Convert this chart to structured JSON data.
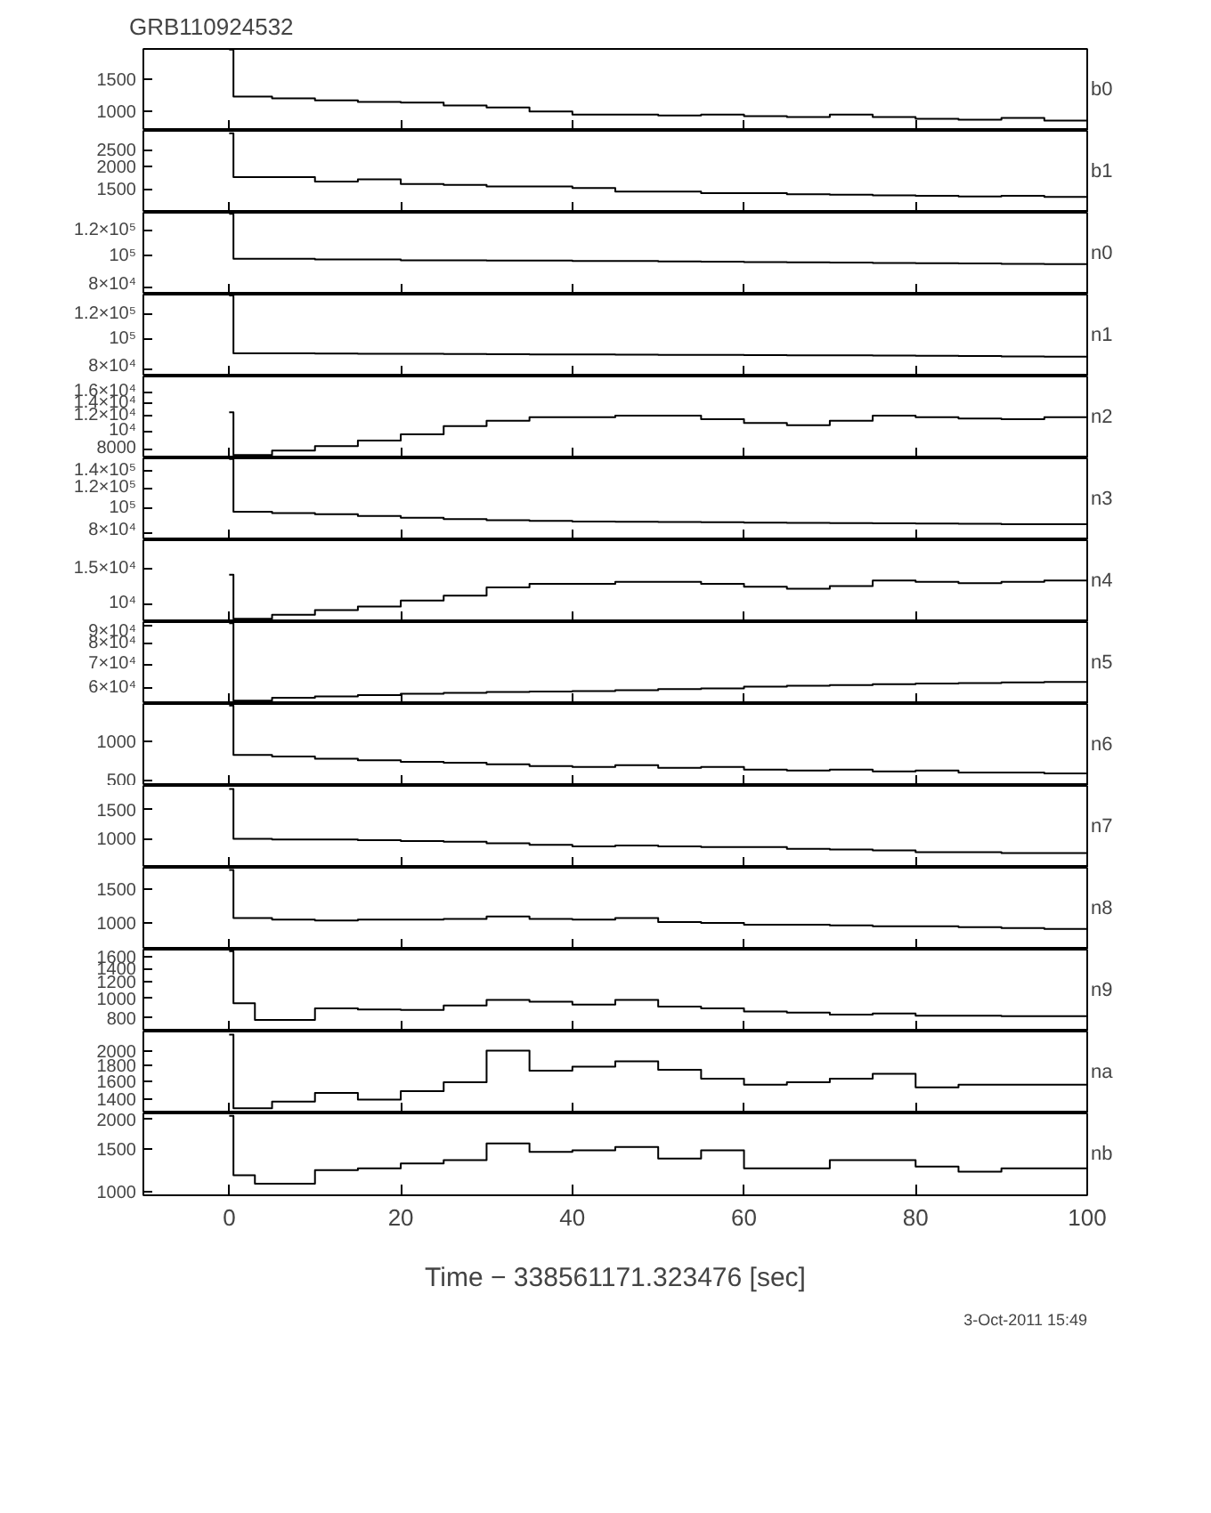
{
  "chart_data": [
    {
      "type": "step",
      "title": "GRB110924532",
      "x": [
        0,
        0.5,
        5,
        10,
        15,
        20,
        25,
        30,
        35,
        40,
        45,
        50,
        55,
        60,
        65,
        70,
        75,
        80,
        85,
        90,
        95,
        100
      ],
      "series": [
        {
          "name": "b0",
          "color": "#000000",
          "values": [
            2200,
            1210,
            1180,
            1150,
            1130,
            1120,
            1080,
            1050,
            1000,
            960,
            960,
            950,
            960,
            940,
            930,
            960,
            930,
            910,
            900,
            920,
            890,
            880
          ]
        }
      ],
      "xlim": [
        -10,
        100
      ],
      "xticks": [
        0,
        20,
        40,
        60,
        80,
        100
      ],
      "ylim": [
        780,
        2220
      ],
      "yticks": [
        1000,
        1500
      ],
      "log": true,
      "tick_labels": "y"
    },
    {
      "type": "step",
      "x": [
        0,
        0.5,
        5,
        10,
        15,
        20,
        25,
        30,
        35,
        40,
        45,
        50,
        55,
        60,
        65,
        70,
        75,
        80,
        85,
        90,
        95,
        100
      ],
      "series": [
        {
          "name": "b1",
          "color": "#000000",
          "values": [
            3100,
            1750,
            1750,
            1650,
            1700,
            1600,
            1580,
            1550,
            1550,
            1520,
            1450,
            1450,
            1420,
            1420,
            1400,
            1390,
            1380,
            1370,
            1360,
            1370,
            1350,
            1350
          ]
        }
      ],
      "xlim": [
        -10,
        100
      ],
      "xticks": [
        0,
        20,
        40,
        60,
        80,
        100
      ],
      "ylim": [
        1100,
        3200
      ],
      "yticks": [
        1500,
        2000,
        2500
      ],
      "log": true,
      "tick_labels": "y"
    },
    {
      "type": "step",
      "x": [
        0,
        0.5,
        5,
        10,
        15,
        20,
        25,
        30,
        35,
        40,
        45,
        50,
        55,
        60,
        65,
        70,
        75,
        80,
        85,
        90,
        95,
        100
      ],
      "series": [
        {
          "name": "n0",
          "color": "#000000",
          "values": [
            135000,
            98000,
            98000,
            97500,
            97500,
            97000,
            97000,
            96800,
            96800,
            96500,
            96500,
            96200,
            96000,
            95800,
            95600,
            95400,
            95200,
            95000,
            94800,
            94600,
            94400,
            94000
          ]
        }
      ],
      "xlim": [
        -10,
        100
      ],
      "xticks": [
        0,
        20,
        40,
        60,
        80,
        100
      ],
      "ylim": [
        76000,
        136000
      ],
      "yticks": [
        {
          "value": 80000,
          "label": "8×10⁴"
        },
        {
          "value": 100000,
          "label": "10⁵"
        },
        {
          "value": 120000,
          "label": "1.2×10⁵"
        }
      ],
      "log": true,
      "tick_labels": "y"
    },
    {
      "type": "step",
      "x": [
        0,
        0.5,
        5,
        10,
        15,
        20,
        25,
        30,
        35,
        40,
        45,
        50,
        55,
        60,
        65,
        70,
        75,
        80,
        85,
        90,
        95,
        100
      ],
      "series": [
        {
          "name": "n1",
          "color": "#000000",
          "values": [
            137000,
            90000,
            90000,
            89800,
            89700,
            89600,
            89500,
            89400,
            89300,
            89200,
            89100,
            89000,
            88900,
            88800,
            88700,
            88600,
            88500,
            88400,
            88200,
            88000,
            87800,
            87500
          ]
        }
      ],
      "xlim": [
        -10,
        100
      ],
      "xticks": [
        0,
        20,
        40,
        60,
        80,
        100
      ],
      "ylim": [
        76000,
        138000
      ],
      "yticks": [
        {
          "value": 80000,
          "label": "8×10⁴"
        },
        {
          "value": 100000,
          "label": "10⁵"
        },
        {
          "value": 120000,
          "label": "1.2×10⁵"
        }
      ],
      "log": true,
      "tick_labels": "y"
    },
    {
      "type": "step",
      "x": [
        0,
        0.5,
        5,
        10,
        15,
        20,
        25,
        30,
        35,
        40,
        45,
        50,
        55,
        60,
        65,
        70,
        75,
        80,
        85,
        90,
        95,
        100
      ],
      "series": [
        {
          "name": "n2",
          "color": "#000000",
          "values": [
            12500,
            7500,
            7900,
            8330,
            8900,
            9600,
            10600,
            11300,
            11800,
            11800,
            12000,
            12000,
            11500,
            11000,
            10700,
            11300,
            12000,
            11800,
            11600,
            11500,
            11800,
            12000
          ]
        }
      ],
      "xlim": [
        -10,
        100
      ],
      "xticks": [
        0,
        20,
        40,
        60,
        80,
        100
      ],
      "ylim": [
        7200,
        19200
      ],
      "yticks": [
        8000,
        {
          "value": 10000,
          "label": "10⁴"
        },
        {
          "value": 12000,
          "label": "1.2×10⁴"
        },
        {
          "value": 14000,
          "label": "1.4×10⁴"
        },
        {
          "value": 16000,
          "label": "1.6×10⁴"
        }
      ],
      "log": true,
      "tick_labels": "y"
    },
    {
      "type": "step",
      "x": [
        0,
        0.5,
        5,
        10,
        15,
        20,
        25,
        30,
        35,
        40,
        45,
        50,
        55,
        60,
        65,
        70,
        75,
        80,
        85,
        90,
        95,
        100
      ],
      "series": [
        {
          "name": "n3",
          "color": "#000000",
          "values": [
            155000,
            97000,
            96000,
            95000,
            93500,
            92000,
            91000,
            90000,
            89500,
            89000,
            88800,
            88600,
            88400,
            88200,
            88000,
            87800,
            87600,
            87400,
            87200,
            87000,
            87000,
            87000
          ]
        }
      ],
      "xlim": [
        -10,
        100
      ],
      "xticks": [
        0,
        20,
        40,
        60,
        80,
        100
      ],
      "ylim": [
        75400,
        156000
      ],
      "yticks": [
        {
          "value": 80000,
          "label": "8×10⁴"
        },
        {
          "value": 100000,
          "label": "10⁵"
        },
        {
          "value": 120000,
          "label": "1.2×10⁵"
        },
        {
          "value": 140000,
          "label": "1.4×10⁵"
        }
      ],
      "log": true,
      "tick_labels": "y"
    },
    {
      "type": "step",
      "x": [
        0,
        0.5,
        5,
        10,
        15,
        20,
        25,
        30,
        35,
        40,
        45,
        50,
        55,
        60,
        65,
        70,
        75,
        80,
        85,
        90,
        95,
        100
      ],
      "series": [
        {
          "name": "n4",
          "color": "#000000",
          "values": [
            14000,
            8400,
            8800,
            9300,
            9700,
            10400,
            11000,
            12100,
            12600,
            12600,
            12900,
            12900,
            12600,
            12200,
            11900,
            12300,
            13100,
            12900,
            12700,
            12900,
            13100,
            13400
          ]
        }
      ],
      "xlim": [
        -10,
        100
      ],
      "xticks": [
        0,
        20,
        40,
        60,
        80,
        100
      ],
      "ylim": [
        8090,
        20900
      ],
      "yticks": [
        {
          "value": 10000,
          "label": "10⁴"
        },
        {
          "value": 15000,
          "label": "1.5×10⁴"
        }
      ],
      "log": true,
      "tick_labels": "y"
    },
    {
      "type": "step",
      "x": [
        0,
        0.5,
        5,
        10,
        15,
        20,
        25,
        30,
        35,
        40,
        45,
        50,
        55,
        60,
        65,
        70,
        75,
        80,
        85,
        90,
        95,
        100
      ],
      "series": [
        {
          "name": "n5",
          "color": "#000000",
          "values": [
            91000,
            55500,
            56500,
            57000,
            57500,
            58000,
            58300,
            58600,
            58800,
            59000,
            59300,
            59700,
            60000,
            60700,
            61000,
            61300,
            61600,
            61900,
            62100,
            62300,
            62500,
            62700
          ]
        }
      ],
      "xlim": [
        -10,
        100
      ],
      "xticks": [
        0,
        20,
        40,
        60,
        80,
        100
      ],
      "ylim": [
        54300,
        91600
      ],
      "yticks": [
        {
          "value": 60000,
          "label": "6×10⁴"
        },
        {
          "value": 70000,
          "label": "7×10⁴"
        },
        {
          "value": 80000,
          "label": "8×10⁴"
        },
        {
          "value": 90000,
          "label": "9×10⁴"
        }
      ],
      "log": true,
      "tick_labels": "y"
    },
    {
      "type": "step",
      "x": [
        0,
        0.5,
        5,
        10,
        15,
        20,
        25,
        30,
        35,
        40,
        45,
        50,
        55,
        60,
        65,
        70,
        75,
        80,
        85,
        90,
        95,
        100
      ],
      "series": [
        {
          "name": "n6",
          "color": "#000000",
          "values": [
            1900,
            790,
            770,
            740,
            720,
            700,
            690,
            670,
            650,
            640,
            660,
            630,
            640,
            610,
            600,
            610,
            590,
            600,
            580,
            580,
            570,
            550
          ]
        }
      ],
      "xlim": [
        -10,
        100
      ],
      "xticks": [
        0,
        20,
        40,
        60,
        80,
        100
      ],
      "ylim": [
        457,
        1950
      ],
      "yticks": [
        500,
        1000
      ],
      "log": true,
      "tick_labels": "y"
    },
    {
      "type": "step",
      "x": [
        0,
        0.5,
        5,
        10,
        15,
        20,
        25,
        30,
        35,
        40,
        45,
        50,
        55,
        60,
        65,
        70,
        75,
        80,
        85,
        90,
        95,
        100
      ],
      "series": [
        {
          "name": "n7",
          "color": "#000000",
          "values": [
            2000,
            1000,
            990,
            990,
            980,
            970,
            960,
            940,
            920,
            900,
            910,
            900,
            890,
            890,
            870,
            860,
            850,
            830,
            830,
            820,
            820,
            810
          ]
        }
      ],
      "xlim": [
        -10,
        100
      ],
      "xticks": [
        0,
        20,
        40,
        60,
        80,
        100
      ],
      "ylim": [
        668,
        2090
      ],
      "yticks": [
        1000,
        1500
      ],
      "log": true,
      "tick_labels": "y"
    },
    {
      "type": "step",
      "x": [
        0,
        0.5,
        5,
        10,
        15,
        20,
        25,
        30,
        35,
        40,
        45,
        50,
        55,
        60,
        65,
        70,
        75,
        80,
        85,
        90,
        95,
        100
      ],
      "series": [
        {
          "name": "n8",
          "color": "#000000",
          "values": [
            1900,
            1060,
            1040,
            1030,
            1040,
            1040,
            1050,
            1080,
            1050,
            1040,
            1060,
            1010,
            1000,
            980,
            980,
            970,
            960,
            960,
            950,
            940,
            930,
            920
          ]
        }
      ],
      "xlim": [
        -10,
        100
      ],
      "xticks": [
        0,
        20,
        40,
        60,
        80,
        100
      ],
      "ylim": [
        724,
        1950
      ],
      "yticks": [
        1000,
        1500
      ],
      "log": true,
      "tick_labels": "y"
    },
    {
      "type": "step",
      "x": [
        0,
        0.5,
        3,
        10,
        15,
        20,
        25,
        30,
        35,
        40,
        45,
        50,
        55,
        60,
        65,
        70,
        75,
        80,
        85,
        90,
        95,
        100
      ],
      "series": [
        {
          "name": "n9",
          "color": "#000000",
          "values": [
            1700,
            945,
            782,
            890,
            880,
            876,
            920,
            980,
            960,
            930,
            980,
            910,
            890,
            860,
            850,
            830,
            840,
            820,
            820,
            815,
            815,
            815
          ]
        }
      ],
      "xlim": [
        -10,
        100
      ],
      "xticks": [
        0,
        20,
        40,
        60,
        80,
        100
      ],
      "ylim": [
        686,
        1730
      ],
      "yticks": [
        800,
        1000,
        1200,
        1400,
        1600
      ],
      "log": true,
      "tick_labels": "y"
    },
    {
      "type": "step",
      "x": [
        0,
        0.5,
        5,
        10,
        15,
        20,
        25,
        30,
        35,
        40,
        45,
        50,
        55,
        60,
        65,
        70,
        75,
        80,
        85,
        90,
        95,
        100
      ],
      "series": [
        {
          "name": "na",
          "color": "#000000",
          "values": [
            2250,
            1315,
            1380,
            1470,
            1400,
            1490,
            1590,
            2000,
            1730,
            1780,
            1850,
            1740,
            1630,
            1560,
            1590,
            1630,
            1690,
            1530,
            1560,
            1560,
            1560,
            1590
          ]
        }
      ],
      "xlim": [
        -10,
        100
      ],
      "xticks": [
        0,
        20,
        40,
        60,
        80,
        100
      ],
      "ylim": [
        1266,
        2300
      ],
      "yticks": [
        1400,
        1600,
        1800,
        2000
      ],
      "log": true,
      "tick_labels": "y"
    },
    {
      "type": "step",
      "xlabel": "Time − 338561171.323476 [sec]",
      "annotations": [
        "3-Oct-2011 15:49"
      ],
      "x": [
        0,
        0.5,
        3,
        10,
        15,
        20,
        25,
        30,
        35,
        40,
        45,
        50,
        55,
        60,
        65,
        70,
        75,
        80,
        85,
        90,
        95,
        100
      ],
      "series": [
        {
          "name": "nb",
          "color": "#000000",
          "values": [
            2050,
            1170,
            1080,
            1230,
            1250,
            1310,
            1350,
            1580,
            1460,
            1480,
            1530,
            1370,
            1480,
            1250,
            1250,
            1350,
            1350,
            1270,
            1210,
            1250,
            1250,
            1310
          ]
        }
      ],
      "xlim": [
        -10,
        100
      ],
      "xticks": [
        0,
        20,
        40,
        60,
        80,
        100
      ],
      "ylim": [
        969,
        2100
      ],
      "yticks": [
        1000,
        1500,
        2000
      ],
      "log": true
    }
  ]
}
